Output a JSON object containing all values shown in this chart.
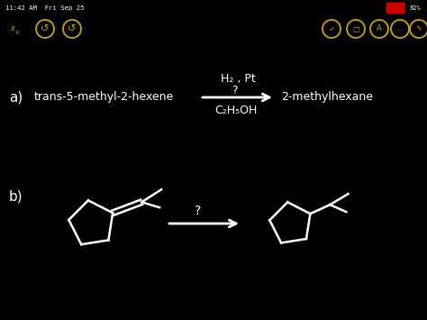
{
  "bg_color": "#000000",
  "text_color": "#ffffff",
  "icon_color": "#c8a800",
  "status_time": "11:42 AM  Fri Sep 25",
  "battery_pct": "82%",
  "red_battery": "#cc0000",
  "part_a_label": "a)",
  "part_a_reactant": "trans-5-methyl-2-hexene",
  "part_a_above": "H₂ , Pt",
  "part_a_q": "?",
  "part_a_below": "C₂H₅OH",
  "part_a_product": "2-methylhexane",
  "part_b_label": "b)",
  "part_b_q": "?"
}
